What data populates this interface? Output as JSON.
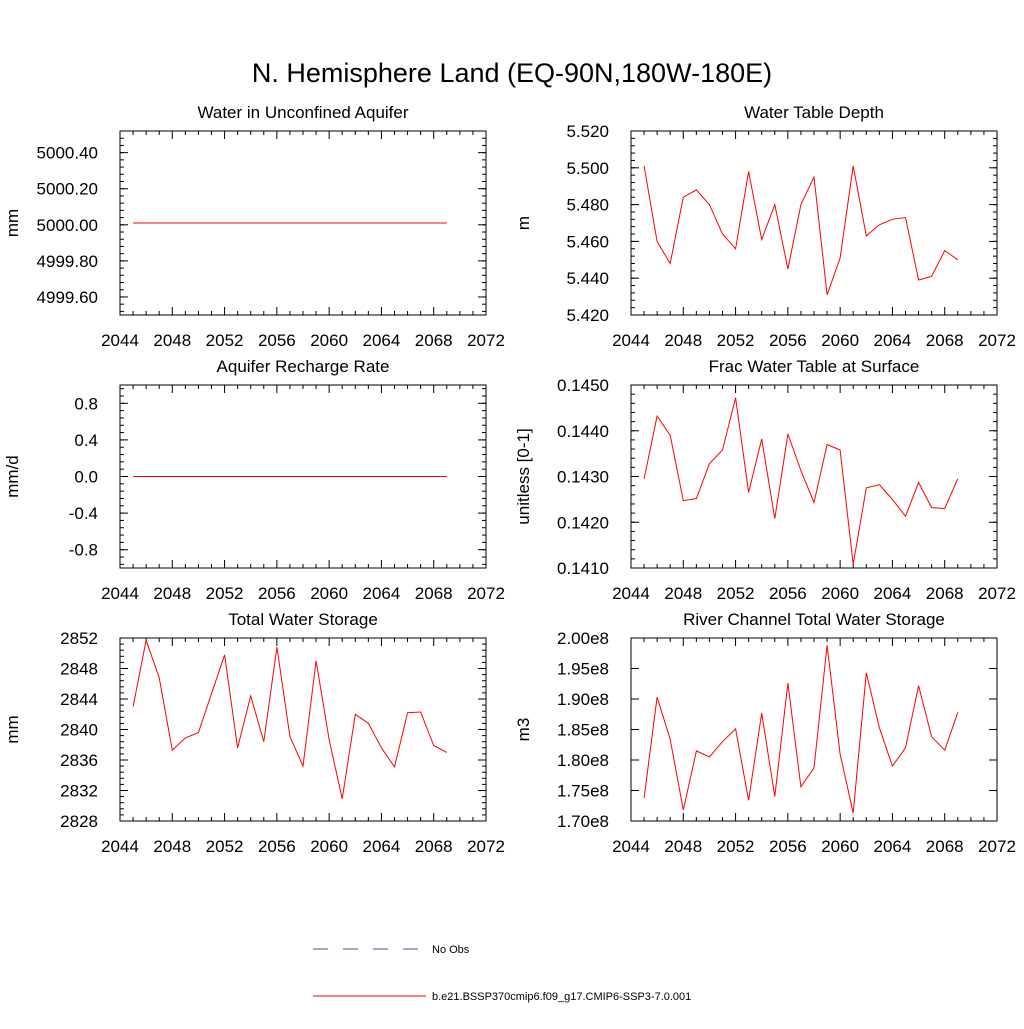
{
  "figure_title": "N. Hemisphere Land (EQ-90N,180W-180E)",
  "legend": {
    "entries": [
      {
        "label": "No Obs",
        "style": "dashed",
        "color": "#4a4a9a"
      },
      {
        "label": "b.e21.BSSP370cmip6.f09_g17.CMIP6-SSP3-7.0.001",
        "style": "solid",
        "color": "#ff0000"
      }
    ]
  },
  "line_color": "#ff0000",
  "chart_data": [
    {
      "type": "line",
      "title": "Water in Unconfined Aquifer",
      "ylabel": "mm",
      "xlim": [
        2044,
        2072
      ],
      "ylim": [
        4999.5,
        5000.52
      ],
      "xticks": [
        "2044",
        "2048",
        "2052",
        "2056",
        "2060",
        "2064",
        "2068",
        "2072"
      ],
      "yticks": [
        "4999.60",
        "4999.80",
        "5000.00",
        "5000.20",
        "5000.40"
      ],
      "ytick_values": [
        4999.6,
        4999.8,
        5000.0,
        5000.2,
        5000.4
      ],
      "y_minor_step": 0.04,
      "x": [
        2045,
        2046,
        2047,
        2048,
        2049,
        2050,
        2051,
        2052,
        2053,
        2054,
        2055,
        2056,
        2057,
        2058,
        2059,
        2060,
        2061,
        2062,
        2063,
        2064,
        2065,
        2066,
        2067,
        2068,
        2069
      ],
      "series": [
        {
          "values": [
            5000.01,
            5000.01,
            5000.01,
            5000.01,
            5000.01,
            5000.01,
            5000.01,
            5000.01,
            5000.01,
            5000.01,
            5000.01,
            5000.01,
            5000.01,
            5000.01,
            5000.01,
            5000.01,
            5000.01,
            5000.01,
            5000.01,
            5000.01,
            5000.01,
            5000.01,
            5000.01,
            5000.01,
            5000.01
          ]
        }
      ]
    },
    {
      "type": "line",
      "title": "Water Table Depth",
      "ylabel": "m",
      "xlim": [
        2044,
        2072
      ],
      "ylim": [
        5.42,
        5.52
      ],
      "xticks": [
        "2044",
        "2048",
        "2052",
        "2056",
        "2060",
        "2064",
        "2068",
        "2072"
      ],
      "yticks": [
        "5.420",
        "5.440",
        "5.460",
        "5.480",
        "5.500",
        "5.520"
      ],
      "ytick_values": [
        5.42,
        5.44,
        5.46,
        5.48,
        5.5,
        5.52
      ],
      "y_minor_step": 0.004,
      "x": [
        2045,
        2046,
        2047,
        2048,
        2049,
        2050,
        2051,
        2052,
        2053,
        2054,
        2055,
        2056,
        2057,
        2058,
        2059,
        2060,
        2061,
        2062,
        2063,
        2064,
        2065,
        2066,
        2067,
        2068,
        2069
      ],
      "series": [
        {
          "values": [
            5.501,
            5.46,
            5.448,
            5.484,
            5.488,
            5.48,
            5.464,
            5.456,
            5.498,
            5.461,
            5.48,
            5.445,
            5.48,
            5.495,
            5.431,
            5.451,
            5.501,
            5.463,
            5.469,
            5.472,
            5.473,
            5.439,
            5.441,
            5.455,
            5.45
          ]
        }
      ]
    },
    {
      "type": "line",
      "title": "Aquifer Recharge Rate",
      "ylabel": "mm/d",
      "xlim": [
        2044,
        2072
      ],
      "ylim": [
        -1.0,
        1.0
      ],
      "xticks": [
        "2044",
        "2048",
        "2052",
        "2056",
        "2060",
        "2064",
        "2068",
        "2072"
      ],
      "yticks": [
        "-0.8",
        "-0.4",
        "0.0",
        "0.4",
        "0.8"
      ],
      "ytick_values": [
        -0.8,
        -0.4,
        0.0,
        0.4,
        0.8
      ],
      "y_minor_step": 0.08,
      "x": [
        2045,
        2046,
        2047,
        2048,
        2049,
        2050,
        2051,
        2052,
        2053,
        2054,
        2055,
        2056,
        2057,
        2058,
        2059,
        2060,
        2061,
        2062,
        2063,
        2064,
        2065,
        2066,
        2067,
        2068,
        2069
      ],
      "series": [
        {
          "values": [
            0,
            0,
            0,
            0,
            0,
            0,
            0,
            0,
            0,
            0,
            0,
            0,
            0,
            0,
            0,
            0,
            0,
            0,
            0,
            0,
            0,
            0,
            0,
            0,
            0
          ]
        }
      ]
    },
    {
      "type": "line",
      "title": "Frac Water Table at Surface",
      "ylabel": "unitless [0-1]",
      "xlim": [
        2044,
        2072
      ],
      "ylim": [
        0.141,
        0.145
      ],
      "xticks": [
        "2044",
        "2048",
        "2052",
        "2056",
        "2060",
        "2064",
        "2068",
        "2072"
      ],
      "yticks": [
        "0.1410",
        "0.1420",
        "0.1430",
        "0.1440",
        "0.1450"
      ],
      "ytick_values": [
        0.141,
        0.142,
        0.143,
        0.144,
        0.145
      ],
      "y_minor_step": 0.0002,
      "x": [
        2045,
        2046,
        2047,
        2048,
        2049,
        2050,
        2051,
        2052,
        2053,
        2054,
        2055,
        2056,
        2057,
        2058,
        2059,
        2060,
        2061,
        2062,
        2063,
        2064,
        2065,
        2066,
        2067,
        2068,
        2069
      ],
      "series": [
        {
          "values": [
            0.14295,
            0.14432,
            0.1439,
            0.14247,
            0.14252,
            0.14328,
            0.14358,
            0.14472,
            0.14265,
            0.14382,
            0.14208,
            0.14393,
            0.14313,
            0.14243,
            0.1437,
            0.14358,
            0.14108,
            0.14275,
            0.14282,
            0.1425,
            0.14213,
            0.14287,
            0.14232,
            0.1423,
            0.14295
          ]
        }
      ]
    },
    {
      "type": "line",
      "title": "Total Water Storage",
      "ylabel": "mm",
      "xlim": [
        2044,
        2072
      ],
      "ylim": [
        2828,
        2852
      ],
      "xticks": [
        "2044",
        "2048",
        "2052",
        "2056",
        "2060",
        "2064",
        "2068",
        "2072"
      ],
      "yticks": [
        "2828",
        "2832",
        "2836",
        "2840",
        "2844",
        "2848",
        "2852"
      ],
      "ytick_values": [
        2828,
        2832,
        2836,
        2840,
        2844,
        2848,
        2852
      ],
      "y_minor_step": 0.8,
      "x": [
        2045,
        2046,
        2047,
        2048,
        2049,
        2050,
        2051,
        2052,
        2053,
        2054,
        2055,
        2056,
        2057,
        2058,
        2059,
        2060,
        2061,
        2062,
        2063,
        2064,
        2065,
        2066,
        2067,
        2068,
        2069
      ],
      "series": [
        {
          "values": [
            2843.0,
            2851.7,
            2846.8,
            2837.3,
            2838.9,
            2839.6,
            2844.7,
            2849.8,
            2837.6,
            2844.4,
            2838.4,
            2850.8,
            2839.1,
            2835.2,
            2849.0,
            2838.7,
            2830.9,
            2842.0,
            2840.8,
            2837.6,
            2835.1,
            2842.2,
            2842.3,
            2837.9,
            2837.0
          ]
        }
      ]
    },
    {
      "type": "line",
      "title": "River Channel Total Water Storage",
      "ylabel": "m3",
      "xlim": [
        2044,
        2072
      ],
      "ylim": [
        170000000.0,
        200000000.0
      ],
      "xticks": [
        "2044",
        "2048",
        "2052",
        "2056",
        "2060",
        "2064",
        "2068",
        "2072"
      ],
      "yticks": [
        "1.70e8",
        "1.75e8",
        "1.80e8",
        "1.85e8",
        "1.90e8",
        "1.95e8",
        "2.00e8"
      ],
      "ytick_values": [
        170000000.0,
        175000000.0,
        180000000.0,
        185000000.0,
        190000000.0,
        195000000.0,
        200000000.0
      ],
      "y_minor_step": 10000000.0,
      "x": [
        2045,
        2046,
        2047,
        2048,
        2049,
        2050,
        2051,
        2052,
        2053,
        2054,
        2055,
        2056,
        2057,
        2058,
        2059,
        2060,
        2061,
        2062,
        2063,
        2064,
        2065,
        2066,
        2067,
        2068,
        2069
      ],
      "series": [
        {
          "values": [
            173800000.0,
            190300000.0,
            183400000.0,
            171800000.0,
            181500000.0,
            180500000.0,
            183000000.0,
            185100000.0,
            173400000.0,
            187700000.0,
            174000000.0,
            192600000.0,
            175600000.0,
            178700000.0,
            198800000.0,
            181000000.0,
            171300000.0,
            194300000.0,
            185300000.0,
            179000000.0,
            182000000.0,
            192200000.0,
            183800000.0,
            181600000.0,
            187800000.0
          ]
        }
      ]
    }
  ]
}
